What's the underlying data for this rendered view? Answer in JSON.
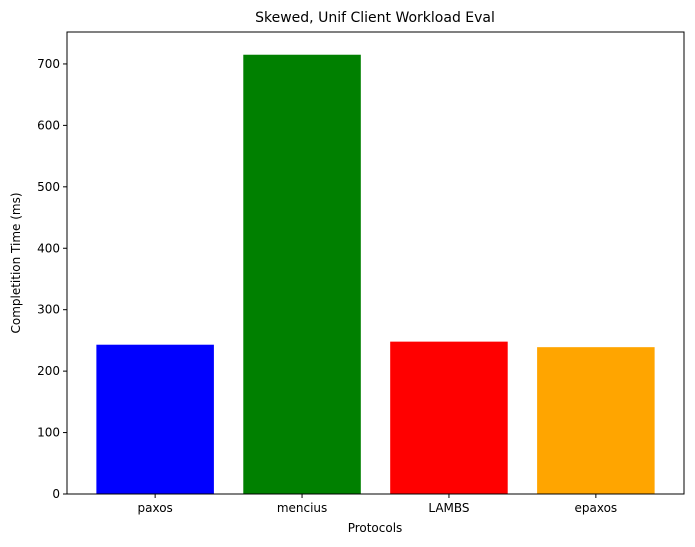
{
  "chart_data": {
    "type": "bar",
    "title": "Skewed, Unif Client Workload Eval",
    "xlabel": "Protocols",
    "ylabel": "Completition Time (ms)",
    "categories": [
      "paxos",
      "mencius",
      "LAMBS",
      "epaxos"
    ],
    "values": [
      243,
      715,
      248,
      239
    ],
    "colors": [
      "#0000ff",
      "#008000",
      "#ff0000",
      "#ffa500"
    ],
    "ylim": [
      0,
      752
    ],
    "yticks": [
      0,
      100,
      200,
      300,
      400,
      500,
      600,
      700
    ],
    "grid": false,
    "legend": "none"
  }
}
